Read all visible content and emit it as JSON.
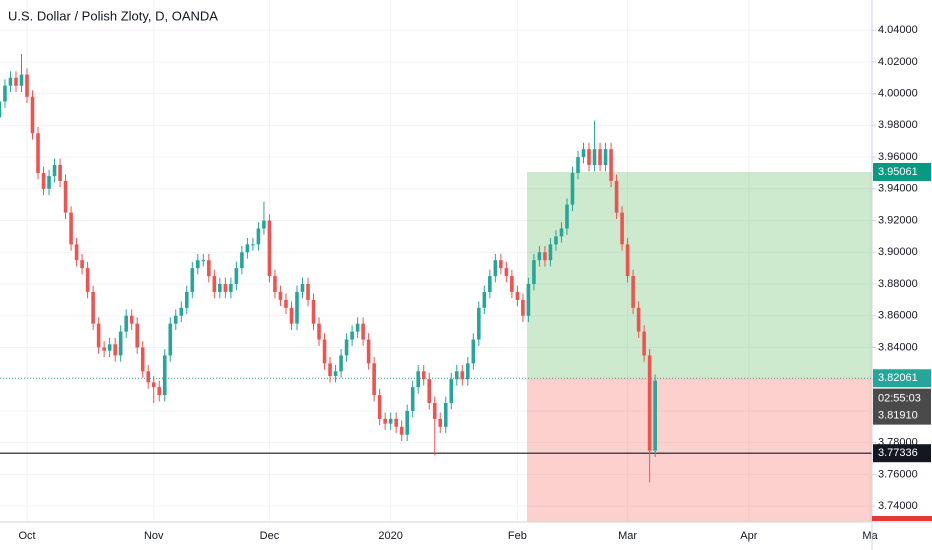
{
  "chart_data": {
    "type": "candlestick",
    "title": "U.S. Dollar / Polish Zloty, D, OANDA",
    "categories": [
      null,
      null,
      null,
      null,
      null,
      "Oct",
      null,
      null,
      null,
      null,
      null,
      null,
      null,
      null,
      null,
      null,
      null,
      null,
      null,
      null,
      null,
      null,
      null,
      null,
      null,
      null,
      null,
      null,
      "Nov",
      null,
      null,
      null,
      null,
      null,
      null,
      null,
      null,
      null,
      null,
      null,
      null,
      null,
      null,
      null,
      null,
      null,
      null,
      null,
      null,
      "Dec",
      null,
      null,
      null,
      null,
      null,
      null,
      null,
      null,
      null,
      null,
      null,
      null,
      null,
      null,
      null,
      null,
      null,
      null,
      null,
      null,
      null,
      "2020",
      null,
      null,
      null,
      null,
      null,
      null,
      null,
      null,
      null,
      null,
      null,
      null,
      null,
      null,
      null,
      null,
      null,
      null,
      null,
      null,
      null,
      null,
      "Feb",
      null,
      null,
      null,
      null,
      null,
      null,
      null,
      null,
      null,
      null,
      null,
      null,
      null,
      null,
      null,
      null,
      null,
      null,
      null,
      "Mar",
      null,
      null,
      null,
      null,
      null,
      null,
      null,
      null,
      null,
      null,
      null,
      null,
      null,
      null,
      null,
      null,
      null,
      null,
      null,
      null,
      null,
      "Apr",
      null,
      null,
      null,
      null,
      null,
      null,
      null,
      null,
      null,
      null,
      null,
      null,
      null,
      null,
      null,
      null,
      null,
      null,
      null,
      null,
      null,
      "Ma"
    ],
    "open": [
      3.985,
      3.995,
      4.005,
      4.01,
      4.005,
      4.012,
      3.998,
      3.975,
      3.95,
      3.94,
      3.948,
      3.955,
      3.945,
      3.925,
      3.905,
      3.895,
      3.89,
      3.875,
      3.855,
      3.84,
      3.838,
      3.842,
      3.835,
      3.85,
      3.86,
      3.855,
      3.84,
      3.825,
      3.818,
      3.815,
      3.81,
      3.835,
      3.855,
      3.86,
      3.865,
      3.875,
      3.89,
      3.895,
      3.895,
      3.885,
      3.875,
      3.88,
      3.875,
      3.88,
      3.89,
      3.9,
      3.905,
      3.905,
      3.915,
      3.92,
      3.885,
      3.875,
      3.87,
      3.865,
      3.855,
      3.875,
      3.88,
      3.87,
      3.855,
      3.845,
      3.83,
      3.822,
      3.825,
      3.835,
      3.845,
      3.85,
      3.855,
      3.845,
      3.83,
      3.81,
      3.795,
      3.792,
      3.795,
      3.79,
      3.785,
      3.8,
      3.815,
      3.825,
      3.82,
      3.805,
      3.795,
      3.79,
      3.805,
      3.82,
      3.825,
      3.82,
      3.83,
      3.845,
      3.865,
      3.875,
      3.885,
      3.895,
      3.89,
      3.885,
      3.875,
      3.87,
      3.86,
      3.88,
      3.895,
      3.9,
      3.895,
      3.905,
      3.91,
      3.915,
      3.93,
      3.95,
      3.96,
      3.965,
      3.955,
      3.965,
      3.955,
      3.965,
      3.945,
      3.925,
      3.905,
      3.885,
      3.865,
      3.85,
      3.835,
      3.775,
      null,
      null,
      null,
      null,
      null,
      null,
      null,
      null,
      null,
      null,
      null,
      null,
      null,
      null,
      null,
      null,
      null,
      null,
      null,
      null,
      null,
      null,
      null,
      null,
      null,
      null,
      null,
      null,
      null,
      null,
      null,
      null,
      null,
      null,
      null,
      null,
      null,
      null,
      null
    ],
    "high": [
      3.999,
      4.009,
      4.014,
      4.014,
      4.025,
      4.016,
      4.002,
      3.979,
      3.954,
      3.952,
      3.959,
      3.959,
      3.949,
      3.929,
      3.909,
      3.899,
      3.894,
      3.879,
      3.859,
      3.844,
      3.846,
      3.846,
      3.854,
      3.864,
      3.864,
      3.859,
      3.844,
      3.829,
      3.822,
      3.819,
      3.839,
      3.859,
      3.864,
      3.869,
      3.879,
      3.894,
      3.899,
      3.899,
      3.899,
      3.889,
      3.884,
      3.884,
      3.884,
      3.894,
      3.904,
      3.909,
      3.909,
      3.919,
      3.932,
      3.924,
      3.889,
      3.879,
      3.874,
      3.869,
      3.879,
      3.884,
      3.884,
      3.874,
      3.859,
      3.849,
      3.834,
      3.829,
      3.839,
      3.849,
      3.854,
      3.859,
      3.859,
      3.849,
      3.834,
      3.814,
      3.799,
      3.799,
      3.799,
      3.794,
      3.804,
      3.819,
      3.829,
      3.829,
      3.824,
      3.809,
      3.799,
      3.809,
      3.824,
      3.829,
      3.829,
      3.834,
      3.849,
      3.869,
      3.879,
      3.889,
      3.899,
      3.899,
      3.894,
      3.889,
      3.879,
      3.874,
      3.884,
      3.899,
      3.904,
      3.904,
      3.909,
      3.914,
      3.919,
      3.934,
      3.954,
      3.964,
      3.969,
      3.969,
      3.983,
      3.969,
      3.969,
      3.969,
      3.949,
      3.929,
      3.909,
      3.889,
      3.869,
      3.854,
      3.839,
      3.823,
      null,
      null,
      null,
      null,
      null,
      null,
      null,
      null,
      null,
      null,
      null,
      null,
      null,
      null,
      null,
      null,
      null,
      null,
      null,
      null,
      null,
      null,
      null,
      null,
      null,
      null,
      null,
      null,
      null,
      null,
      null,
      null,
      null,
      null,
      null,
      null,
      null,
      null,
      null
    ],
    "low": [
      3.981,
      3.991,
      4.001,
      4.001,
      4.001,
      3.994,
      3.971,
      3.946,
      3.936,
      3.936,
      3.944,
      3.941,
      3.921,
      3.901,
      3.891,
      3.886,
      3.871,
      3.851,
      3.836,
      3.834,
      3.834,
      3.831,
      3.831,
      3.846,
      3.851,
      3.836,
      3.821,
      3.814,
      3.805,
      3.806,
      3.806,
      3.831,
      3.851,
      3.856,
      3.861,
      3.871,
      3.886,
      3.891,
      3.881,
      3.871,
      3.871,
      3.871,
      3.871,
      3.876,
      3.886,
      3.896,
      3.901,
      3.901,
      3.911,
      3.881,
      3.871,
      3.866,
      3.861,
      3.851,
      3.851,
      3.871,
      3.866,
      3.851,
      3.841,
      3.826,
      3.818,
      3.818,
      3.821,
      3.831,
      3.841,
      3.846,
      3.841,
      3.826,
      3.806,
      3.791,
      3.788,
      3.788,
      3.786,
      3.781,
      3.781,
      3.796,
      3.811,
      3.816,
      3.801,
      3.772,
      3.786,
      3.786,
      3.801,
      3.816,
      3.816,
      3.816,
      3.826,
      3.841,
      3.861,
      3.871,
      3.881,
      3.886,
      3.881,
      3.871,
      3.866,
      3.856,
      3.856,
      3.876,
      3.891,
      3.891,
      3.891,
      3.901,
      3.906,
      3.911,
      3.926,
      3.946,
      3.956,
      3.951,
      3.951,
      3.951,
      3.951,
      3.941,
      3.921,
      3.901,
      3.881,
      3.861,
      3.846,
      3.831,
      3.755,
      3.771,
      null,
      null,
      null,
      null,
      null,
      null,
      null,
      null,
      null,
      null,
      null,
      null,
      null,
      null,
      null,
      null,
      null,
      null,
      null,
      null,
      null,
      null,
      null,
      null,
      null,
      null,
      null,
      null,
      null,
      null,
      null,
      null,
      null,
      null,
      null,
      null,
      null,
      null,
      null
    ],
    "close": [
      3.995,
      4.005,
      4.01,
      4.005,
      4.012,
      3.998,
      3.975,
      3.95,
      3.94,
      3.948,
      3.955,
      3.945,
      3.925,
      3.905,
      3.895,
      3.89,
      3.875,
      3.855,
      3.84,
      3.838,
      3.842,
      3.835,
      3.85,
      3.86,
      3.855,
      3.84,
      3.825,
      3.818,
      3.815,
      3.81,
      3.835,
      3.855,
      3.86,
      3.865,
      3.875,
      3.89,
      3.895,
      3.895,
      3.885,
      3.875,
      3.88,
      3.875,
      3.88,
      3.89,
      3.9,
      3.905,
      3.905,
      3.915,
      3.92,
      3.885,
      3.875,
      3.87,
      3.865,
      3.855,
      3.875,
      3.88,
      3.87,
      3.855,
      3.845,
      3.83,
      3.822,
      3.825,
      3.835,
      3.845,
      3.85,
      3.855,
      3.845,
      3.83,
      3.81,
      3.795,
      3.792,
      3.795,
      3.79,
      3.785,
      3.8,
      3.815,
      3.825,
      3.82,
      3.805,
      3.795,
      3.79,
      3.805,
      3.82,
      3.825,
      3.82,
      3.83,
      3.845,
      3.865,
      3.875,
      3.885,
      3.895,
      3.89,
      3.885,
      3.875,
      3.87,
      3.86,
      3.88,
      3.895,
      3.9,
      3.895,
      3.905,
      3.91,
      3.915,
      3.93,
      3.95,
      3.96,
      3.965,
      3.955,
      3.965,
      3.955,
      3.965,
      3.945,
      3.925,
      3.905,
      3.885,
      3.865,
      3.85,
      3.835,
      3.775,
      3.8191,
      null,
      null,
      null,
      null,
      null,
      null,
      null,
      null,
      null,
      null,
      null,
      null,
      null,
      null,
      null,
      null,
      null,
      null,
      null,
      null,
      null,
      null,
      null,
      null,
      null,
      null,
      null,
      null,
      null,
      null,
      null,
      null,
      null,
      null,
      null,
      null,
      null,
      null,
      null
    ],
    "up_color": "#26a69a",
    "down_color": "#ef5350",
    "ylim": [
      3.73,
      4.059
    ],
    "yticks": [
      {
        "value": 3.74,
        "label": "3.74000"
      },
      {
        "value": 3.76,
        "label": "3.76000"
      },
      {
        "value": 3.78,
        "label": "3.78000"
      },
      {
        "value": 3.8,
        "label": "3.80000"
      },
      {
        "value": 3.82,
        "label": "3.82000"
      },
      {
        "value": 3.84,
        "label": "3.84000"
      },
      {
        "value": 3.86,
        "label": "3.86000"
      },
      {
        "value": 3.88,
        "label": "3.88000"
      },
      {
        "value": 3.9,
        "label": "3.90000"
      },
      {
        "value": 3.92,
        "label": "3.92000"
      },
      {
        "value": 3.94,
        "label": "3.94000"
      },
      {
        "value": 3.96,
        "label": "3.96000"
      },
      {
        "value": 3.98,
        "label": "3.98000"
      },
      {
        "value": 4.0,
        "label": "4.00000"
      },
      {
        "value": 4.02,
        "label": "4.02000"
      },
      {
        "value": 4.04,
        "label": "4.04000"
      }
    ],
    "grid": true,
    "position": {
      "target": 3.95061,
      "entry": 3.82061,
      "profit_color": "#4caf50",
      "loss_color": "#f44336",
      "target_label_color": "#089981",
      "entry_label_color": "#26a69a"
    },
    "last_price": {
      "value": 3.8191,
      "label": "3.81910",
      "countdown": "02:55:03"
    },
    "horizontal_line": 3.77336
  }
}
